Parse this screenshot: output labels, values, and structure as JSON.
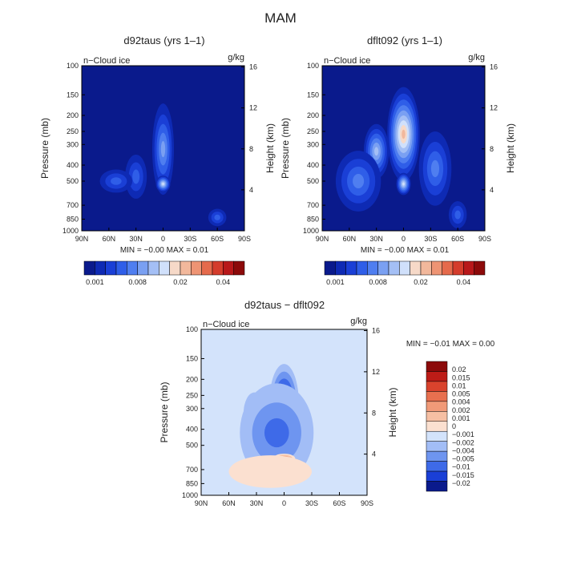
{
  "figure_title": "MAM",
  "colors": {
    "seq_scale": [
      "#0a1a8c",
      "#0e2ab4",
      "#1a3fd6",
      "#2f5ee8",
      "#4f7ef0",
      "#7aa0f2",
      "#a4bff5",
      "#d0e0fb",
      "#f6d9c8",
      "#f2b89c",
      "#ee9474",
      "#e56a4c",
      "#d43c2c",
      "#b8181a",
      "#8c0a0a"
    ],
    "div_scale": [
      "#0a1a8c",
      "#1a3fd6",
      "#3e6ae8",
      "#6e95f0",
      "#a2bdf6",
      "#d3e3fb",
      "#fbe0d0",
      "#f6bfa3",
      "#f19a78",
      "#e8704f",
      "#d9432d",
      "#bd1c17",
      "#8c0a0a"
    ]
  },
  "chart_data": [
    {
      "type": "heatmap",
      "title": "d92taus (yrs 1–1)",
      "inner_label": "n−Cloud ice",
      "units": "g/kg",
      "ylabel": "Pressure (mb)",
      "ylabel_right": "Height (km)",
      "x_ticks": [
        "90N",
        "60N",
        "30N",
        "0",
        "30S",
        "60S",
        "90S"
      ],
      "y_ticks": [
        "100",
        "150",
        "200",
        "250",
        "300",
        "400",
        "500",
        "700",
        "850",
        "1000"
      ],
      "right_ticks": [
        "16",
        "12",
        "8",
        "4"
      ],
      "min_max": "MIN =  −0.00    MAX =   0.01",
      "colorbar_labels": [
        "0.001",
        "0.008",
        "0.02",
        "0.04"
      ],
      "blobs": [
        {
          "lat": 0,
          "p": 320,
          "wlat": 12,
          "wp": 180,
          "v": 5
        },
        {
          "lat": 0,
          "p": 520,
          "wlat": 8,
          "wp": 60,
          "v": 7
        },
        {
          "lat": 30,
          "p": 470,
          "wlat": 12,
          "wp": 140,
          "v": 3
        },
        {
          "lat": 52,
          "p": 500,
          "wlat": 18,
          "wp": 80,
          "v": 3
        },
        {
          "lat": -60,
          "p": 830,
          "wlat": 10,
          "wp": 100,
          "v": 3
        }
      ]
    },
    {
      "type": "heatmap",
      "title": "dflt092 (yrs 1–1)",
      "inner_label": "n−Cloud ice",
      "units": "g/kg",
      "ylabel": "Pressure (mb)",
      "ylabel_right": "Height (km)",
      "x_ticks": [
        "90N",
        "60N",
        "30N",
        "0",
        "30S",
        "60S",
        "90S"
      ],
      "y_ticks": [
        "100",
        "150",
        "200",
        "250",
        "300",
        "400",
        "500",
        "700",
        "850",
        "1000"
      ],
      "right_ticks": [
        "16",
        "12",
        "8",
        "4"
      ],
      "min_max": "MIN =  −0.00    MAX =   0.01",
      "colorbar_labels": [
        "0.001",
        "0.008",
        "0.02",
        "0.04"
      ],
      "blobs": [
        {
          "lat": 0,
          "p": 260,
          "wlat": 18,
          "wp": 150,
          "v": 9
        },
        {
          "lat": 0,
          "p": 520,
          "wlat": 8,
          "wp": 80,
          "v": 7
        },
        {
          "lat": 30,
          "p": 330,
          "wlat": 14,
          "wp": 120,
          "v": 6
        },
        {
          "lat": 50,
          "p": 500,
          "wlat": 25,
          "wp": 200,
          "v": 4
        },
        {
          "lat": -35,
          "p": 420,
          "wlat": 18,
          "wp": 200,
          "v": 4
        },
        {
          "lat": -60,
          "p": 800,
          "wlat": 10,
          "wp": 150,
          "v": 3
        }
      ]
    },
    {
      "type": "heatmap",
      "title": "d92taus − dflt092",
      "inner_label": "n−Cloud ice",
      "units": "g/kg",
      "ylabel": "Pressure (mb)",
      "ylabel_right": "Height (km)",
      "x_ticks": [
        "90N",
        "60N",
        "30N",
        "0",
        "30S",
        "60S",
        "90S"
      ],
      "y_ticks": [
        "100",
        "150",
        "200",
        "250",
        "300",
        "400",
        "500",
        "700",
        "850",
        "1000"
      ],
      "right_ticks": [
        "16",
        "12",
        "8",
        "4"
      ],
      "min_max": "MIN =  −0.01    MAX =    0.00",
      "colorbar_labels": [
        "0.02",
        "0.015",
        "0.01",
        "0.005",
        "0.004",
        "0.002",
        "0.001",
        "0",
        "−0.001",
        "−0.002",
        "−0.004",
        "−0.005",
        "−0.01",
        "−0.015",
        "−0.02"
      ],
      "blobs": [
        {
          "lat": 0,
          "p": 280,
          "wlat": 16,
          "wp": 140,
          "v": -6
        },
        {
          "lat": 32,
          "p": 320,
          "wlat": 12,
          "wp": 90,
          "v": -5
        },
        {
          "lat": 8,
          "p": 420,
          "wlat": 40,
          "wp": 250,
          "v": -3
        },
        {
          "lat": 0,
          "p": 600,
          "wlat": 12,
          "wp": 40,
          "v": 4
        },
        {
          "lat": 15,
          "p": 720,
          "wlat": 45,
          "wp": 160,
          "v": 1
        }
      ]
    }
  ]
}
